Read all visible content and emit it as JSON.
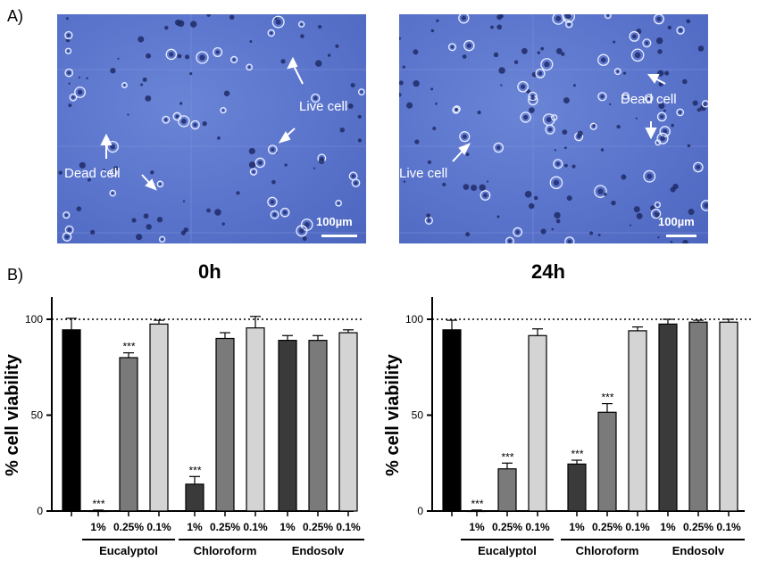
{
  "panels": {
    "a_label": "A)",
    "b_label": "B)"
  },
  "micrographs": [
    {
      "annotations": [
        "Live cell",
        "Dead cell"
      ],
      "scalebar": "100µm"
    },
    {
      "annotations": [
        "Dead cell",
        "Live cell"
      ],
      "scalebar": "100µm"
    }
  ],
  "time_labels": [
    "0h",
    "24h"
  ],
  "colors": {
    "micro_bg": "#5a74cc",
    "control": "#000000",
    "conc_1": "#3a3a3a",
    "conc_025": "#7a7a7a",
    "conc_01": "#d4d4d4"
  },
  "chart_data": [
    {
      "type": "bar",
      "ylabel": "% cell viability",
      "ylim": [
        0,
        100
      ],
      "yticks": [
        0,
        50,
        100
      ],
      "reference_line": 100,
      "groups": [
        "Eucalyptol",
        "Chloroform",
        "Endosolv"
      ],
      "concentrations": [
        "1%",
        "0.25%",
        "0.1%"
      ],
      "bars": [
        {
          "value": 94.5,
          "error": 6,
          "sig": ""
        },
        {
          "value": 0,
          "error": 0.5,
          "sig": "***"
        },
        {
          "value": 80,
          "error": 2.5,
          "sig": "***"
        },
        {
          "value": 97.5,
          "error": 2,
          "sig": ""
        },
        {
          "value": 14,
          "error": 4,
          "sig": "***"
        },
        {
          "value": 90,
          "error": 3,
          "sig": ""
        },
        {
          "value": 95.5,
          "error": 6,
          "sig": ""
        },
        {
          "value": 89,
          "error": 2.5,
          "sig": ""
        },
        {
          "value": 89,
          "error": 2.5,
          "sig": ""
        },
        {
          "value": 93,
          "error": 1.5,
          "sig": ""
        }
      ]
    },
    {
      "type": "bar",
      "ylabel": "% cell viability",
      "ylim": [
        0,
        100
      ],
      "yticks": [
        0,
        50,
        100
      ],
      "reference_line": 100,
      "groups": [
        "Eucalyptol",
        "Chloroform",
        "Endosolv"
      ],
      "concentrations": [
        "1%",
        "0.25%",
        "0.1%"
      ],
      "bars": [
        {
          "value": 94.5,
          "error": 5,
          "sig": ""
        },
        {
          "value": 0,
          "error": 0.5,
          "sig": "***"
        },
        {
          "value": 22,
          "error": 3,
          "sig": "***"
        },
        {
          "value": 91.5,
          "error": 3.5,
          "sig": ""
        },
        {
          "value": 24.5,
          "error": 2,
          "sig": "***"
        },
        {
          "value": 51.5,
          "error": 4.5,
          "sig": "***"
        },
        {
          "value": 94,
          "error": 2,
          "sig": ""
        },
        {
          "value": 97.5,
          "error": 2.5,
          "sig": ""
        },
        {
          "value": 98.5,
          "error": 1,
          "sig": ""
        },
        {
          "value": 98.5,
          "error": 1.5,
          "sig": ""
        }
      ]
    }
  ]
}
